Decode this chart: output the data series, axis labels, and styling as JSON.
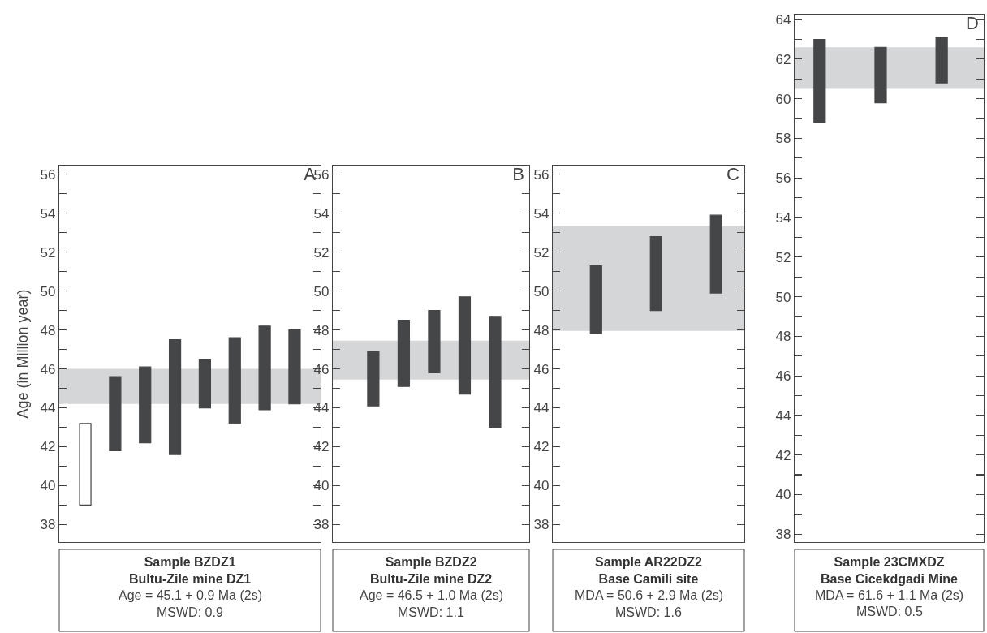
{
  "chart_data": [
    {
      "type": "bar",
      "title": "A",
      "ylabel": "Age (in Million year)",
      "xlabel": "Sample BZDZ1\nBultu-Zile mine DZ1",
      "annotations": [
        "Age = 45.1 + 0.9 Ma (2s)",
        "MSWD: 0.9"
      ],
      "categories": [
        null,
        null,
        null,
        null,
        null,
        null,
        null,
        null
      ],
      "base": [
        39.0,
        41.8,
        42.2,
        41.6,
        44.0,
        43.2,
        43.9,
        44.2
      ],
      "values": [
        4.2,
        3.8,
        3.9,
        5.9,
        2.5,
        4.4,
        4.3,
        3.8
      ],
      "colors": [
        "#ffffff",
        "#454648",
        "#454648",
        "#454648",
        "#454648",
        "#454648",
        "#454648",
        "#454648"
      ],
      "bands": [
        {
          "axis": "y",
          "from": 44.2,
          "to": 46.0,
          "color": "#d5d6d8"
        }
      ],
      "ylim": [
        37.1,
        56.45
      ],
      "yticks": [
        38,
        {
          "value": 39,
          "label": null
        },
        40,
        {
          "value": 41,
          "label": null
        },
        42,
        {
          "value": 43,
          "label": null
        },
        44,
        {
          "value": 45,
          "label": null
        },
        46,
        {
          "value": 47,
          "label": null
        },
        48,
        {
          "value": 49,
          "label": null
        },
        50,
        {
          "value": 51,
          "label": null
        },
        52,
        {
          "value": 53,
          "label": null
        },
        54,
        {
          "value": 55,
          "label": null
        },
        56
      ],
      "tick_labels": "y"
    },
    {
      "type": "bar",
      "title": "B",
      "xlabel": "Sample BZDZ2\nBultu-Zile mine DZ2",
      "annotations": [
        "Age = 46.5 + 1.0 Ma (2s)",
        "MSWD: 1.1"
      ],
      "categories": [
        null,
        null,
        null,
        null,
        null
      ],
      "base": [
        44.1,
        45.1,
        45.8,
        44.7,
        43.0
      ],
      "values": [
        2.8,
        3.4,
        3.2,
        5.0,
        5.7
      ],
      "colors": [
        "#454648",
        "#454648",
        "#454648",
        "#454648",
        "#454648"
      ],
      "bands": [
        {
          "axis": "y",
          "from": 45.45,
          "to": 47.45,
          "color": "#d5d6d8"
        }
      ],
      "ylim": [
        37.1,
        56.45
      ],
      "yticks": [
        38,
        {
          "value": 39,
          "label": null
        },
        40,
        {
          "value": 41,
          "label": null
        },
        42,
        {
          "value": 43,
          "label": null
        },
        44,
        {
          "value": 45,
          "label": null
        },
        46,
        {
          "value": 47,
          "label": null
        },
        48,
        {
          "value": 49,
          "label": null
        },
        50,
        {
          "value": 51,
          "label": null
        },
        52,
        {
          "value": 53,
          "label": null
        },
        54,
        {
          "value": 55,
          "label": null
        },
        56
      ],
      "tick_labels": "y"
    },
    {
      "type": "bar",
      "title": "C",
      "xlabel": "Sample AR22DZ2\nBase Camili site",
      "annotations": [
        "MDA = 50.6 + 2.9 Ma (2s)",
        "MSWD: 1.6"
      ],
      "categories": [
        null,
        null,
        null
      ],
      "base": [
        47.8,
        49.0,
        49.9
      ],
      "values": [
        3.5,
        3.8,
        4.0
      ],
      "colors": [
        "#454648",
        "#454648",
        "#454648"
      ],
      "bands": [
        {
          "axis": "y",
          "from": 47.95,
          "to": 53.35,
          "color": "#d5d6d8"
        }
      ],
      "ylim": [
        37.1,
        56.45
      ],
      "yticks": [
        38,
        {
          "value": 39,
          "label": null
        },
        40,
        {
          "value": 41,
          "label": null
        },
        42,
        {
          "value": 43,
          "label": null
        },
        44,
        {
          "value": 45,
          "label": null
        },
        46,
        {
          "value": 47,
          "label": null
        },
        48,
        {
          "value": 49,
          "label": null
        },
        50,
        {
          "value": 51,
          "label": null
        },
        52,
        {
          "value": 53,
          "label": null
        },
        54,
        {
          "value": 55,
          "label": null
        },
        56
      ],
      "tick_labels": "y"
    },
    {
      "type": "bar",
      "title": "D",
      "xlabel": "Sample 23CMXDZ\nBase Cicekdgadi Mine",
      "annotations": [
        "MDA = 61.6 + 1.1 Ma (2s)",
        "MSWD: 0.5"
      ],
      "categories": [
        null,
        null,
        null
      ],
      "base": [
        58.8,
        59.8,
        60.8
      ],
      "values": [
        4.2,
        2.8,
        2.3
      ],
      "colors": [
        "#454648",
        "#454648",
        "#454648"
      ],
      "bands": [
        {
          "axis": "y",
          "from": 60.5,
          "to": 62.6,
          "color": "#d5d6d8"
        }
      ],
      "ylim": [
        37.6,
        64.25
      ],
      "yticks": [
        38,
        {
          "value": 39,
          "label": null
        },
        40,
        {
          "value": 41,
          "label": null
        },
        42,
        {
          "value": 43,
          "label": null
        },
        44,
        {
          "value": 45,
          "label": null
        },
        46,
        {
          "value": 47,
          "label": null
        },
        48,
        {
          "value": 49,
          "label": null
        },
        50,
        {
          "value": 51,
          "label": null
        },
        52,
        {
          "value": 53,
          "label": null
        },
        54,
        {
          "value": 55,
          "label": null
        },
        56,
        {
          "value": 57,
          "label": null
        },
        58,
        {
          "value": 59,
          "label": null
        },
        60,
        {
          "value": 61,
          "label": null
        },
        62,
        {
          "value": 63,
          "label": null
        },
        64
      ],
      "tick_labels": "y"
    }
  ]
}
